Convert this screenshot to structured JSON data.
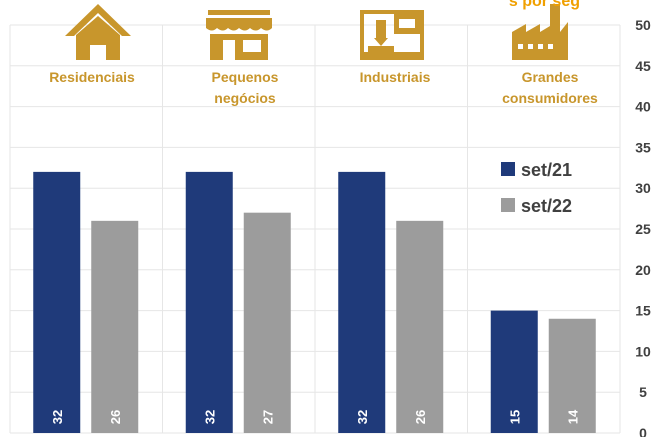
{
  "chart_data": {
    "type": "bar",
    "categories": [
      [
        "Residenciais"
      ],
      [
        "Pequenos",
        "negócios"
      ],
      [
        "Industriais"
      ],
      [
        "Grandes",
        "consumidores"
      ]
    ],
    "category_icons": [
      "house-icon",
      "shop-icon",
      "industrial-machine-icon",
      "factory-icon"
    ],
    "series": [
      {
        "name": "set/21",
        "values": [
          32,
          32,
          32,
          15
        ],
        "color": "#1F3A7A"
      },
      {
        "name": "set/22",
        "values": [
          26,
          27,
          26,
          14
        ],
        "color": "#9C9C9C"
      }
    ],
    "ylim": [
      0,
      50
    ],
    "yticks": [
      0,
      5,
      10,
      15,
      20,
      25,
      30,
      35,
      40,
      45,
      50
    ],
    "y_axis_position": "right",
    "grid": true,
    "legend_position": "right-middle",
    "icon_color": "#C8962C",
    "label_color": "#C8962C",
    "clipped_top_text": "s por seg"
  }
}
